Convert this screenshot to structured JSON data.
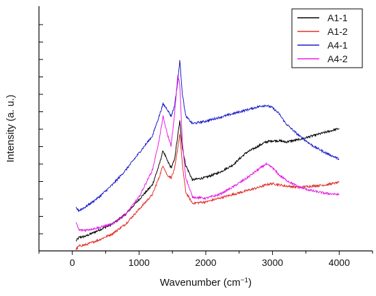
{
  "chart_data": {
    "type": "line",
    "xlabel": "Wavenumber (cm",
    "xlabel_superscript": "−1",
    "xlabel_close": ")",
    "ylabel": "Intensity (a. u.)",
    "xlim": [
      -500,
      4500
    ],
    "ylim": [
      0,
      100
    ],
    "x_ticks": [
      0,
      1000,
      2000,
      3000,
      4000
    ],
    "y_tick_labels_shown": false,
    "legend_position": "top-right",
    "grid": false,
    "x": [
      55,
      100,
      200,
      400,
      600,
      800,
      1000,
      1200,
      1300,
      1360,
      1420,
      1480,
      1530,
      1580,
      1610,
      1650,
      1700,
      1800,
      2000,
      2200,
      2400,
      2600,
      2800,
      2900,
      3000,
      3100,
      3200,
      3400,
      3600,
      3800,
      4000
    ],
    "series": [
      {
        "name": "A1-1",
        "color": "#000000",
        "values": [
          4.0,
          5.5,
          6.0,
          8.5,
          11.0,
          15.0,
          21.0,
          27.0,
          35.0,
          41.0,
          37.0,
          34.0,
          37.0,
          47.0,
          53.0,
          42.0,
          35.0,
          29.0,
          30.0,
          32.0,
          35.0,
          40.0,
          43.0,
          44.5,
          45.0,
          45.0,
          44.5,
          45.5,
          47.0,
          48.5,
          50.0
        ]
      },
      {
        "name": "A1-2",
        "color": "#e0302a",
        "values": [
          0.5,
          2.0,
          2.5,
          4.5,
          7.0,
          11.0,
          17.0,
          23.0,
          30.0,
          35.0,
          31.0,
          30.0,
          33.0,
          42.0,
          48.0,
          35.0,
          24.0,
          19.5,
          20.0,
          21.5,
          23.0,
          24.5,
          26.0,
          27.0,
          27.5,
          27.0,
          26.5,
          26.0,
          26.5,
          27.0,
          28.0
        ]
      },
      {
        "name": "A4-1",
        "color": "#1a1acc",
        "values": [
          17.5,
          16.5,
          18.0,
          22.0,
          27.0,
          33.0,
          40.0,
          47.0,
          55.0,
          60.0,
          58.0,
          55.0,
          59.0,
          69.0,
          78.0,
          64.0,
          55.0,
          52.0,
          53.0,
          54.5,
          56.0,
          57.5,
          59.0,
          59.5,
          58.5,
          56.0,
          52.0,
          47.0,
          43.0,
          40.0,
          37.5
        ]
      },
      {
        "name": "A4-2",
        "color": "#e61ee6",
        "values": [
          11.5,
          8.5,
          8.5,
          9.5,
          11.0,
          15.0,
          22.0,
          33.0,
          45.0,
          55.0,
          48.0,
          43.0,
          55.0,
          72.0,
          68.0,
          44.0,
          30.0,
          22.0,
          21.5,
          23.0,
          26.0,
          29.5,
          33.5,
          35.5,
          34.0,
          31.0,
          29.0,
          26.0,
          24.5,
          23.5,
          23.0
        ]
      }
    ]
  }
}
